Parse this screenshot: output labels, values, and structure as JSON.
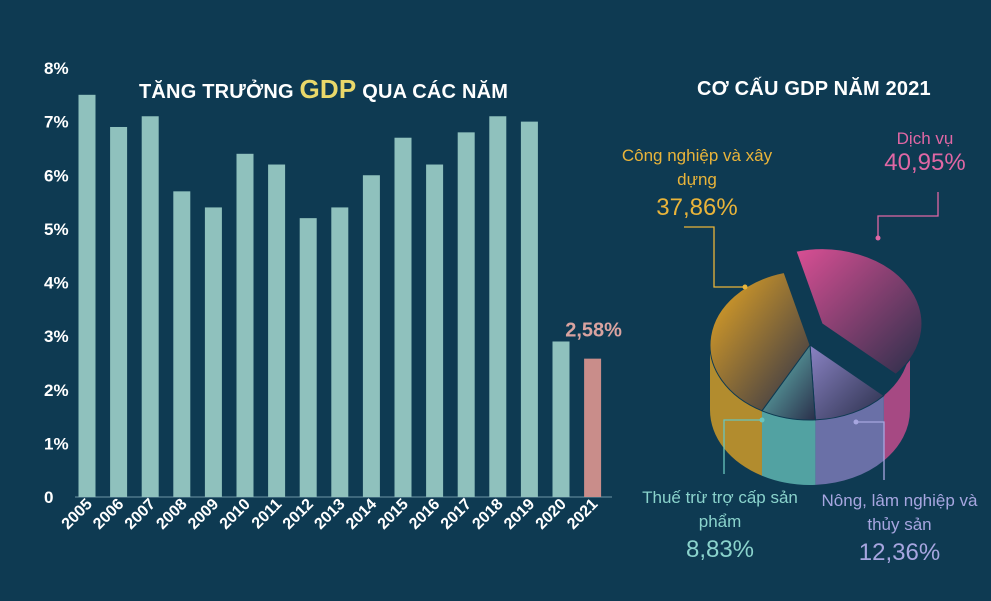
{
  "bar_chart_title": {
    "pre": "TĂNG TRƯỞNG ",
    "highlight": "GDP",
    "post": " QUA CÁC NĂM"
  },
  "pie_chart_title": "CƠ CẤU GDP NĂM 2021",
  "colors": {
    "bar": "#8fc1bd",
    "bar_highlight": "#c98d8a",
    "background": "#0e3a52"
  },
  "chart_data": [
    {
      "type": "bar",
      "categories": [
        "2005",
        "2006",
        "2007",
        "2008",
        "2009",
        "2010",
        "2011",
        "2012",
        "2013",
        "2014",
        "2015",
        "2016",
        "2017",
        "2018",
        "2019",
        "2020",
        "2021"
      ],
      "values": [
        7.5,
        6.9,
        7.1,
        5.7,
        5.4,
        6.4,
        6.2,
        5.2,
        5.4,
        6.0,
        6.7,
        6.2,
        6.8,
        7.1,
        7.0,
        2.9,
        2.58
      ],
      "ytick_labels": [
        "0",
        "1%",
        "2%",
        "3%",
        "4%",
        "5%",
        "6%",
        "7%",
        "8%"
      ],
      "ylim": [
        0,
        8
      ],
      "data_labels": [
        {
          "category": "2021",
          "text": "2,58%"
        }
      ]
    },
    {
      "type": "pie",
      "slices": [
        {
          "name": "Dịch vụ",
          "value": 40.95,
          "label": "40,95%",
          "color": "#d94f94"
        },
        {
          "name": "Nông, lâm nghiệp và thủy sản",
          "value": 12.36,
          "label": "12,36%",
          "color": "#8a83c4"
        },
        {
          "name": "Thuế trừ trợ cấp sản phẩm",
          "value": 8.83,
          "label": "8,83%",
          "color": "#69c5bd"
        },
        {
          "name": "Công nghiệp và xây dựng",
          "value": 37.86,
          "label": "37,86%",
          "color": "#e9a823"
        }
      ]
    }
  ]
}
